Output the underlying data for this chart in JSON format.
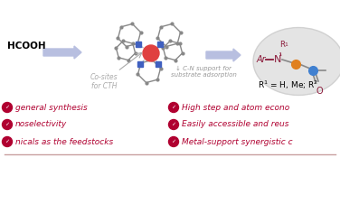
{
  "bg_color": "#ffffff",
  "border_color": "#c8a0a0",
  "hcooh_text": "HCOOH",
  "arrow1_color": "#b8bfe0",
  "arrow2_color": "#b8bfe0",
  "cosites_text": "Co-sites\nfor CTH",
  "cn_support_text": "↓ C-N support for\nsubstrate adsorption",
  "cosites_color": "#aaaaaa",
  "cn_color": "#999999",
  "mol_node_color": "#888888",
  "mol_cobalt_color": "#e04040",
  "mol_n_color": "#4060c0",
  "bullet_color": "#b00030",
  "left_texts": [
    "general synthesis",
    "noselectivity",
    "nicals as the feedstocks"
  ],
  "right_texts": [
    "High step and atom econo",
    "Easily accessible and reus",
    "Metal-support synergistic c"
  ],
  "formula_color": "#8b1a3a",
  "orange_color": "#e08020",
  "blue_color": "#4080d0",
  "ellipse_fill": "#e0e0e0",
  "ellipse_edge": "#cccccc"
}
